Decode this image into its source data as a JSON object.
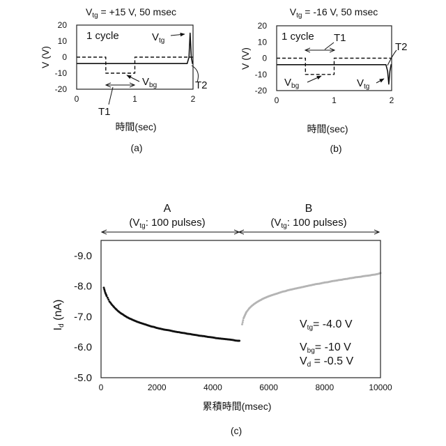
{
  "colors": {
    "ink": "#111111",
    "frame": "#222222",
    "series_A": "#111111",
    "series_B": "#b4b4b4"
  },
  "chart_data": [
    {
      "id": "a",
      "type": "line",
      "title": {
        "base": "V",
        "sub": "tg",
        "rest": " = +15 V, 50 msec"
      },
      "caption": "(a)",
      "xlabel": "時間(sec)",
      "ylabel": "V (V)",
      "xlim": [
        0,
        2
      ],
      "ylim": [
        -20,
        20
      ],
      "xticks": [
        "0",
        "1",
        "2"
      ],
      "yticks": [
        "-20",
        "-10",
        "0",
        "10",
        "20"
      ],
      "series": [
        {
          "style": "solid",
          "label": {
            "base": "V",
            "sub": "tg"
          },
          "points": [
            [
              0,
              -4
            ],
            [
              1.9,
              -4
            ],
            [
              1.93,
              0
            ],
            [
              1.95,
              15
            ],
            [
              1.97,
              0
            ],
            [
              1.99,
              -4
            ],
            [
              2,
              -4
            ]
          ]
        },
        {
          "style": "dashed",
          "label": {
            "base": "V",
            "sub": "bg"
          },
          "points": [
            [
              0,
              0
            ],
            [
              0.5,
              0
            ],
            [
              0.5,
              -10
            ],
            [
              1,
              -10
            ],
            [
              1,
              0
            ],
            [
              2,
              0
            ]
          ]
        }
      ],
      "annotations": {
        "cycle_label": "1 cycle",
        "t1_label": "T1",
        "t2_label": "T2",
        "t1_span": [
          0.5,
          1
        ]
      }
    },
    {
      "id": "b",
      "type": "line",
      "title": {
        "base": "V",
        "sub": "tg",
        "rest": " = -16 V, 50 msec"
      },
      "caption": "(b)",
      "xlabel": "時間(sec)",
      "ylabel": "V (V)",
      "xlim": [
        0,
        2
      ],
      "ylim": [
        -20,
        20
      ],
      "xticks": [
        "0",
        "1",
        "2"
      ],
      "yticks": [
        "-20",
        "-10",
        "0",
        "10",
        "20"
      ],
      "series": [
        {
          "style": "solid",
          "label": {
            "base": "V",
            "sub": "tg"
          },
          "points": [
            [
              0,
              -4
            ],
            [
              1.9,
              -4
            ],
            [
              1.93,
              -8
            ],
            [
              1.95,
              -16
            ],
            [
              1.97,
              -8
            ],
            [
              1.99,
              -4
            ],
            [
              2,
              -4
            ]
          ]
        },
        {
          "style": "dashed",
          "label": {
            "base": "V",
            "sub": "bg"
          },
          "points": [
            [
              0,
              0
            ],
            [
              0.5,
              0
            ],
            [
              0.5,
              -10
            ],
            [
              1,
              -10
            ],
            [
              1,
              0
            ],
            [
              2,
              0
            ]
          ]
        }
      ],
      "annotations": {
        "cycle_label": "1 cycle",
        "t1_label": "T1",
        "t2_label": "T2",
        "t1_span": [
          0.5,
          1
        ]
      }
    },
    {
      "id": "c",
      "type": "scatter",
      "caption": "(c)",
      "xlabel": "累積時間(msec)",
      "ylabel": {
        "base": "I",
        "sub": "d",
        "rest": " (nA)"
      },
      "xlim": [
        0,
        10000
      ],
      "ylim": [
        -5,
        -9.5
      ],
      "xticks": [
        "0",
        "2000",
        "4000",
        "6000",
        "8000",
        "10000"
      ],
      "yticks": [
        "-5.0",
        "-6.0",
        "-7.0",
        "-8.0",
        "-9.0"
      ],
      "segments": [
        {
          "name": "A",
          "sub_label": {
            "open": "(",
            "base": "V",
            "sub": "tg",
            "rest": ": 100 pulses)"
          },
          "x_range": [
            0,
            5000
          ]
        },
        {
          "name": "B",
          "sub_label": {
            "open": "(",
            "base": "V",
            "sub": "tg",
            "rest": ": 100 pulses)"
          },
          "x_range": [
            5000,
            10000
          ]
        }
      ],
      "series": [
        {
          "name": "A",
          "color": "#111111",
          "x": [
            100,
            150,
            200,
            300,
            400,
            500,
            600,
            700,
            800,
            900,
            1000,
            1100,
            1200,
            1300,
            1400,
            1500,
            1600,
            1700,
            1800,
            1900,
            2000,
            2100,
            2200,
            2300,
            2400,
            2500,
            2600,
            2700,
            2800,
            2900,
            3000,
            3100,
            3200,
            3300,
            3400,
            3500,
            3600,
            3700,
            3800,
            3900,
            4000,
            4100,
            4200,
            4300,
            4400,
            4500,
            4600,
            4700,
            4800,
            4900,
            4950
          ],
          "y": [
            -7.95,
            -7.79,
            -7.68,
            -7.5,
            -7.38,
            -7.28,
            -7.19,
            -7.12,
            -7.06,
            -7.0,
            -6.95,
            -6.91,
            -6.87,
            -6.83,
            -6.8,
            -6.77,
            -6.74,
            -6.71,
            -6.68,
            -6.66,
            -6.63,
            -6.61,
            -6.59,
            -6.57,
            -6.56,
            -6.54,
            -6.52,
            -6.5,
            -6.49,
            -6.47,
            -6.46,
            -6.44,
            -6.43,
            -6.41,
            -6.4,
            -6.38,
            -6.37,
            -6.36,
            -6.34,
            -6.33,
            -6.32,
            -6.3,
            -6.29,
            -6.28,
            -6.27,
            -6.26,
            -6.25,
            -6.24,
            -6.22,
            -6.21,
            -6.21
          ]
        },
        {
          "name": "B",
          "color": "#b4b4b4",
          "x": [
            5050,
            5100,
            5150,
            5200,
            5300,
            5400,
            5500,
            5600,
            5700,
            5800,
            5900,
            6000,
            6100,
            6200,
            6300,
            6400,
            6500,
            6600,
            6700,
            6800,
            6900,
            7000,
            7100,
            7200,
            7300,
            7400,
            7500,
            7600,
            7700,
            7800,
            7900,
            8000,
            8100,
            8200,
            8300,
            8400,
            8500,
            8600,
            8700,
            8800,
            8900,
            9000,
            9100,
            9200,
            9300,
            9400,
            9500,
            9600,
            9700,
            9800,
            9900,
            10000
          ],
          "y": [
            -6.75,
            -6.95,
            -7.05,
            -7.15,
            -7.27,
            -7.36,
            -7.43,
            -7.49,
            -7.54,
            -7.59,
            -7.63,
            -7.67,
            -7.7,
            -7.73,
            -7.76,
            -7.79,
            -7.82,
            -7.84,
            -7.87,
            -7.89,
            -7.91,
            -7.93,
            -7.95,
            -7.97,
            -7.99,
            -8.01,
            -8.03,
            -8.05,
            -8.07,
            -8.08,
            -8.1,
            -8.12,
            -8.13,
            -8.15,
            -8.17,
            -8.18,
            -8.2,
            -8.21,
            -8.23,
            -8.24,
            -8.26,
            -8.27,
            -8.29,
            -8.3,
            -8.31,
            -8.33,
            -8.34,
            -8.35,
            -8.37,
            -8.38,
            -8.4,
            -8.43
          ]
        }
      ],
      "annotations": [
        {
          "base": "V",
          "sub": "tg",
          "rest": "= -4.0 V"
        },
        {
          "base": "V",
          "sub": "bg",
          "rest": "= -10 V"
        },
        {
          "base": "V",
          "sub": "d",
          "rest": " = -0.5 V"
        }
      ]
    }
  ]
}
